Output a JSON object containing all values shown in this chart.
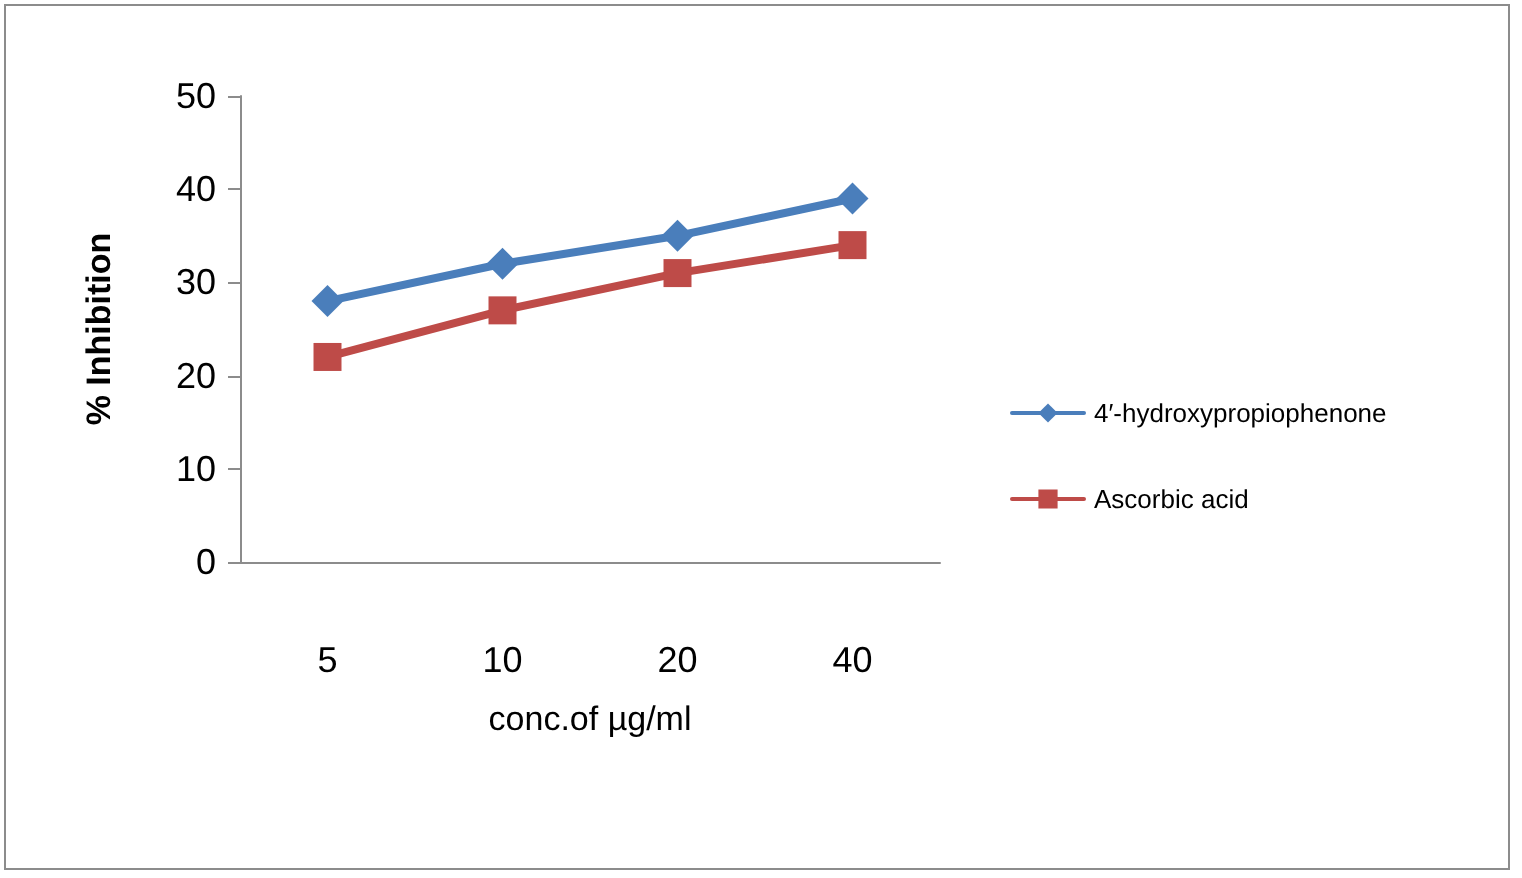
{
  "chart_data": {
    "type": "line",
    "xlabel": "conc.of µg/ml",
    "ylabel": "% Inhibition",
    "categories": [
      "5",
      "10",
      "20",
      "40"
    ],
    "series": [
      {
        "name": "4′-hydroxypropiophenone",
        "color": "#4a7ebb",
        "marker": "diamond",
        "values": [
          28,
          32,
          35,
          39
        ]
      },
      {
        "name": "Ascorbic acid",
        "color": "#be4b48",
        "marker": "square",
        "values": [
          22,
          27,
          31,
          34
        ]
      }
    ],
    "ylim": [
      0,
      50
    ],
    "yticks": [
      0,
      10,
      20,
      30,
      40,
      50
    ],
    "grid": false,
    "legend": "right",
    "line_style": "solid"
  }
}
